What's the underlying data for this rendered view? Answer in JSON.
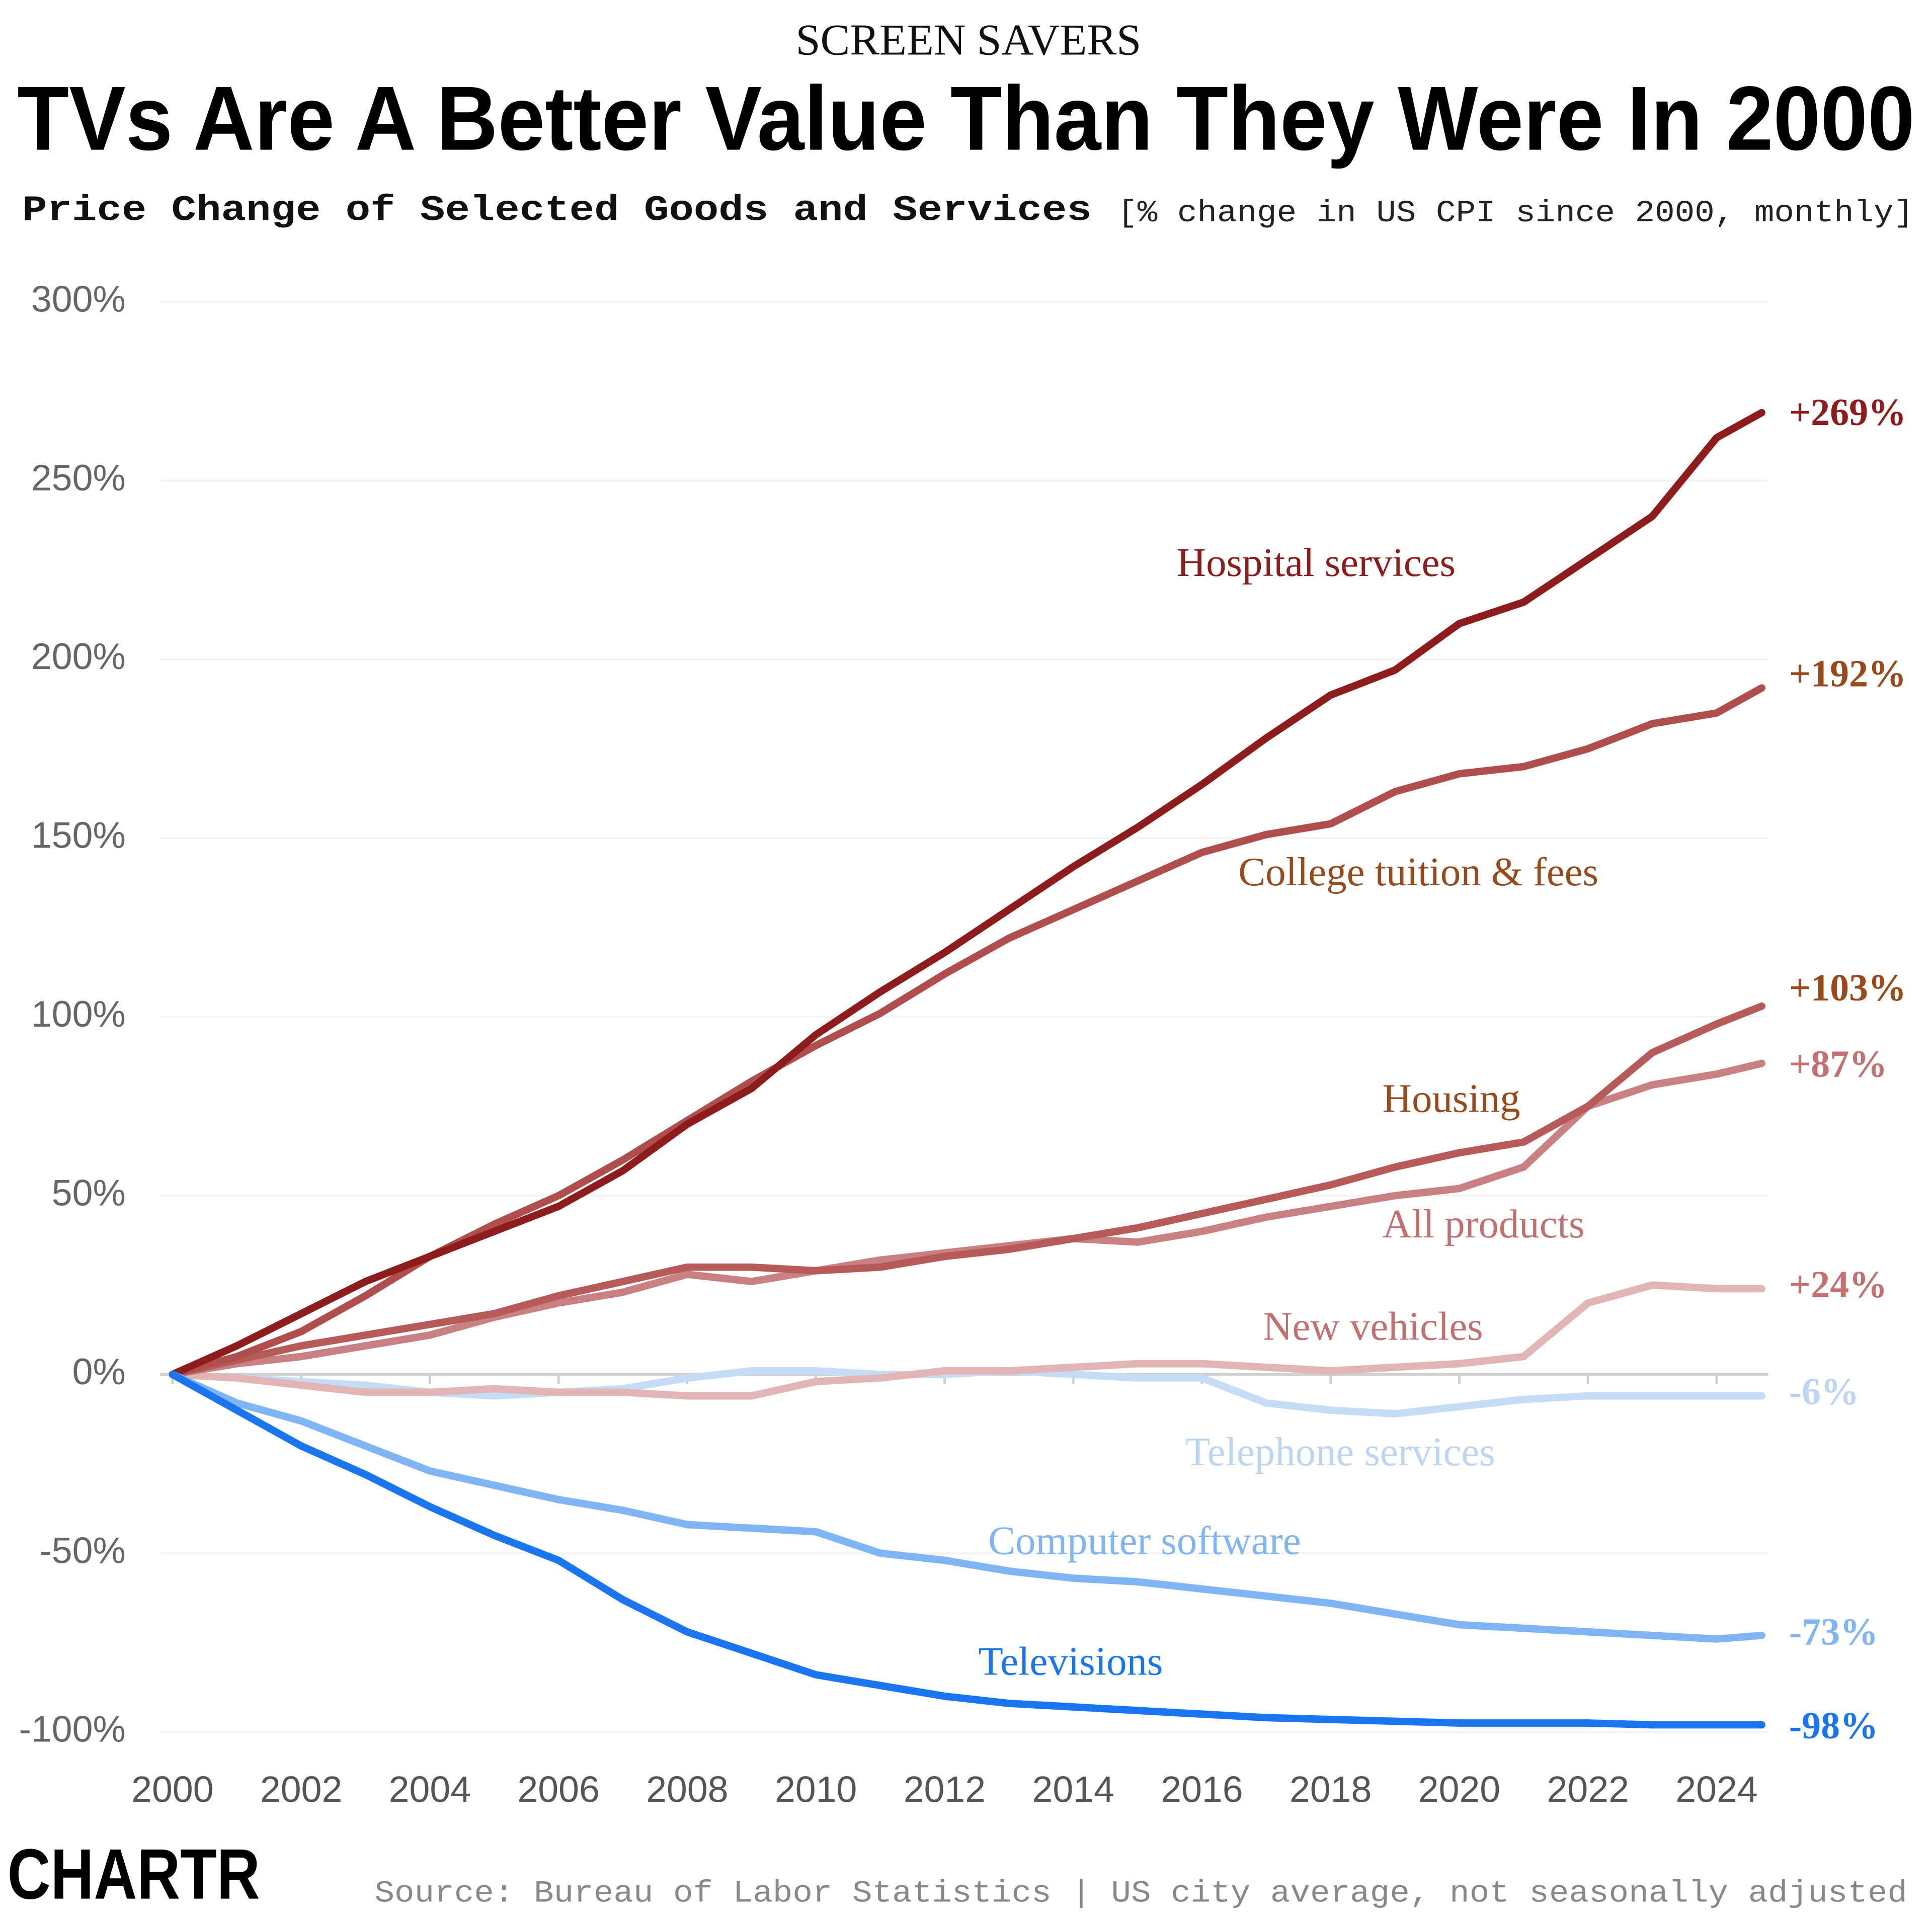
{
  "chart_data": {
    "type": "line",
    "header": "SCREEN SAVERS",
    "title": "TVs Are A Better Value Than They Were In 2000",
    "subtitle": "Price Change of Selected Goods and Services",
    "subtitle_note": "[% change in US CPI since 2000, monthly]",
    "source": "Source: Bureau of Labor Statistics | US city average, not seasonally adjusted",
    "logo": "CHARTR",
    "x": [
      2000,
      2001,
      2002,
      2003,
      2004,
      2005,
      2006,
      2007,
      2008,
      2009,
      2010,
      2011,
      2012,
      2013,
      2014,
      2015,
      2016,
      2017,
      2018,
      2019,
      2020,
      2021,
      2022,
      2023,
      2024,
      2024.7
    ],
    "xlim": [
      2000,
      2024.8
    ],
    "xticks": [
      2000,
      2002,
      2004,
      2006,
      2008,
      2010,
      2012,
      2014,
      2016,
      2018,
      2020,
      2022,
      2024
    ],
    "ylim": [
      -100,
      300
    ],
    "yticks": [
      {
        "value": -100,
        "label": "-100%"
      },
      {
        "value": -50,
        "label": "-50%"
      },
      {
        "value": 0,
        "label": "0%"
      },
      {
        "value": 50,
        "label": "50%"
      },
      {
        "value": 100,
        "label": "100%"
      },
      {
        "value": 150,
        "label": "150%"
      },
      {
        "value": 200,
        "label": "200%"
      },
      {
        "value": 250,
        "label": "250%"
      },
      {
        "value": 300,
        "label": "300%"
      }
    ],
    "grid": true,
    "series": [
      {
        "name": "Hospital services",
        "color": "#8e1c1c",
        "values": [
          0,
          8,
          17,
          26,
          33,
          40,
          47,
          57,
          70,
          80,
          95,
          107,
          118,
          130,
          142,
          153,
          165,
          178,
          190,
          197,
          210,
          216,
          228,
          240,
          262,
          269
        ],
        "value_labels": [
          null,
          null,
          null,
          null,
          null,
          null,
          null,
          null,
          null,
          null,
          null,
          null,
          null,
          null,
          null,
          null,
          null,
          null,
          null,
          null,
          null,
          null,
          null,
          null,
          null,
          "+269%"
        ]
      },
      {
        "name": "College tuition & fees",
        "color": "#b04e4e",
        "values": [
          0,
          5,
          12,
          22,
          33,
          42,
          50,
          60,
          71,
          82,
          92,
          101,
          112,
          122,
          130,
          138,
          146,
          151,
          154,
          163,
          168,
          170,
          175,
          182,
          185,
          192
        ],
        "value_labels": [
          null,
          null,
          null,
          null,
          null,
          null,
          null,
          null,
          null,
          null,
          null,
          null,
          null,
          null,
          null,
          null,
          null,
          null,
          null,
          null,
          null,
          null,
          null,
          null,
          null,
          "+192%"
        ]
      },
      {
        "name": "Housing",
        "color": "#b65a5a",
        "values": [
          0,
          4,
          8,
          11,
          14,
          17,
          22,
          26,
          30,
          30,
          29,
          30,
          33,
          35,
          38,
          41,
          45,
          49,
          53,
          58,
          62,
          65,
          75,
          90,
          98,
          103
        ],
        "value_labels": [
          null,
          null,
          null,
          null,
          null,
          null,
          null,
          null,
          null,
          null,
          null,
          null,
          null,
          null,
          null,
          null,
          null,
          null,
          null,
          null,
          null,
          null,
          null,
          null,
          null,
          "+103%"
        ]
      },
      {
        "name": "All products",
        "color": "#c98080",
        "values": [
          0,
          3,
          5,
          8,
          11,
          16,
          20,
          23,
          28,
          26,
          29,
          32,
          34,
          36,
          38,
          37,
          40,
          44,
          47,
          50,
          52,
          58,
          75,
          81,
          84,
          87
        ],
        "value_labels": [
          null,
          null,
          null,
          null,
          null,
          null,
          null,
          null,
          null,
          null,
          null,
          null,
          null,
          null,
          null,
          null,
          null,
          null,
          null,
          null,
          null,
          null,
          null,
          null,
          null,
          "+87%"
        ]
      },
      {
        "name": "New vehicles",
        "color": "#e2b5b5",
        "values": [
          0,
          -1,
          -3,
          -5,
          -5,
          -4,
          -5,
          -5,
          -6,
          -6,
          -2,
          -1,
          1,
          1,
          2,
          3,
          3,
          2,
          1,
          2,
          3,
          5,
          20,
          25,
          24,
          24
        ],
        "value_labels": [
          null,
          null,
          null,
          null,
          null,
          null,
          null,
          null,
          null,
          null,
          null,
          null,
          null,
          null,
          null,
          null,
          null,
          null,
          null,
          null,
          null,
          null,
          null,
          null,
          null,
          "+24%"
        ]
      },
      {
        "name": "Telephone services",
        "color": "#c4dcf5",
        "values": [
          0,
          -1,
          -2,
          -3,
          -5,
          -6,
          -5,
          -4,
          -1,
          1,
          1,
          0,
          0,
          1,
          0,
          -1,
          -1,
          -8,
          -10,
          -11,
          -9,
          -7,
          -6,
          -6,
          -6,
          -6
        ],
        "value_labels": [
          null,
          null,
          null,
          null,
          null,
          null,
          null,
          null,
          null,
          null,
          null,
          null,
          null,
          null,
          null,
          null,
          null,
          null,
          null,
          null,
          null,
          null,
          null,
          null,
          null,
          "-6%"
        ]
      },
      {
        "name": "Computer software",
        "color": "#80b5f5",
        "values": [
          0,
          -8,
          -13,
          -20,
          -27,
          -31,
          -35,
          -38,
          -42,
          -43,
          -44,
          -50,
          -52,
          -55,
          -57,
          -58,
          -60,
          -62,
          -64,
          -67,
          -70,
          -71,
          -72,
          -73,
          -74,
          -73
        ],
        "value_labels": [
          null,
          null,
          null,
          null,
          null,
          null,
          null,
          null,
          null,
          null,
          null,
          null,
          null,
          null,
          null,
          null,
          null,
          null,
          null,
          null,
          null,
          null,
          null,
          null,
          null,
          "-73%"
        ]
      },
      {
        "name": "Televisions",
        "color": "#1a75f0",
        "values": [
          0,
          -10,
          -20,
          -28,
          -37,
          -45,
          -52,
          -63,
          -72,
          -78,
          -84,
          -87,
          -90,
          -92,
          -93,
          -94,
          -95,
          -96,
          -96.5,
          -97,
          -97.5,
          -97.5,
          -97.5,
          -98,
          -98,
          -98
        ],
        "value_labels": [
          null,
          null,
          null,
          null,
          null,
          null,
          null,
          null,
          null,
          null,
          null,
          null,
          null,
          null,
          null,
          null,
          null,
          null,
          null,
          null,
          null,
          null,
          null,
          null,
          null,
          "-98%"
        ]
      }
    ]
  }
}
